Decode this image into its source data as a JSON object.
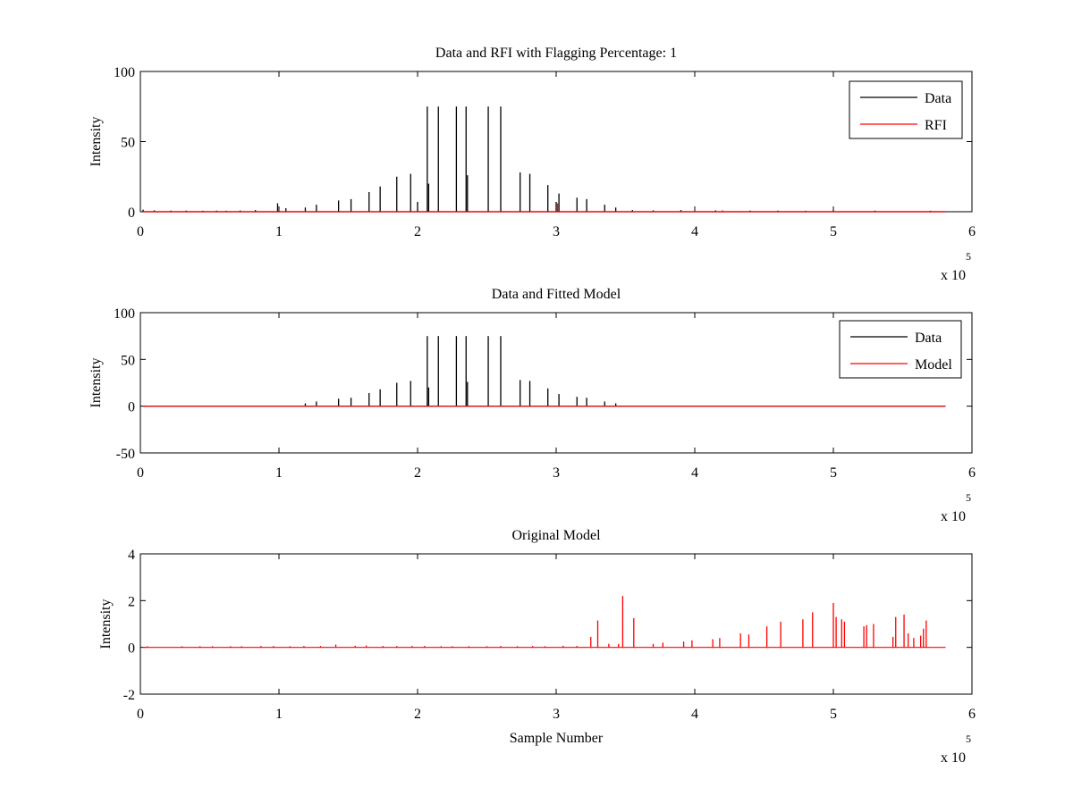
{
  "figure": {
    "x_exponent_base": "x 10",
    "x_exponent_power": "5"
  },
  "chart_data": [
    {
      "type": "line",
      "title": "Data and RFI with Flagging Percentage: 1",
      "xlabel": "",
      "ylabel": "Intensity",
      "xlim": [
        0,
        6
      ],
      "ylim": [
        0,
        100
      ],
      "x_scale": "x 10^5",
      "xticks": [
        "0",
        "1",
        "2",
        "3",
        "4",
        "5",
        "6"
      ],
      "yticks": [
        "0",
        "50",
        "100"
      ],
      "legend": {
        "position": "top-right",
        "entries": [
          {
            "name": "Data",
            "color": "#000000"
          },
          {
            "name": "RFI",
            "color": "#ff0000"
          }
        ]
      },
      "series": [
        {
          "name": "Data",
          "color": "#000000",
          "baseline": 0,
          "spikes": [
            [
              0.02,
              1.5
            ],
            [
              0.1,
              1
            ],
            [
              0.22,
              0.8
            ],
            [
              0.33,
              0.8
            ],
            [
              0.45,
              0.7
            ],
            [
              0.55,
              0.8
            ],
            [
              0.62,
              0.7
            ],
            [
              0.72,
              0.9
            ],
            [
              0.83,
              1.2
            ],
            [
              0.99,
              6
            ],
            [
              1.05,
              2.5
            ],
            [
              1.19,
              3
            ],
            [
              1.27,
              5
            ],
            [
              1.43,
              8
            ],
            [
              1.52,
              9
            ],
            [
              1.65,
              14
            ],
            [
              1.73,
              18
            ],
            [
              1.85,
              25
            ],
            [
              1.95,
              27
            ],
            [
              2.0,
              7
            ],
            [
              2.07,
              75
            ],
            [
              2.08,
              20
            ],
            [
              2.15,
              75
            ],
            [
              2.28,
              75
            ],
            [
              2.35,
              75
            ],
            [
              2.36,
              26
            ],
            [
              2.51,
              75
            ],
            [
              2.6,
              75
            ],
            [
              2.74,
              28
            ],
            [
              2.81,
              27
            ],
            [
              2.94,
              19
            ],
            [
              3.0,
              7
            ],
            [
              3.02,
              13
            ],
            [
              3.15,
              10
            ],
            [
              3.22,
              9
            ],
            [
              3.35,
              5
            ],
            [
              3.43,
              3
            ],
            [
              3.55,
              1.2
            ],
            [
              3.7,
              1
            ],
            [
              3.9,
              1.2
            ],
            [
              4.15,
              1
            ],
            [
              4.4,
              0.8
            ],
            [
              4.6,
              0.8
            ],
            [
              4.8,
              0.7
            ],
            [
              5.0,
              1
            ],
            [
              5.3,
              0.8
            ],
            [
              5.7,
              0.7
            ]
          ]
        },
        {
          "name": "RFI",
          "color": "#ff0000",
          "baseline": 0,
          "spikes": [
            [
              3.01,
              6
            ],
            [
              4.2,
              1
            ]
          ]
        }
      ]
    },
    {
      "type": "line",
      "title": "Data and Fitted Model",
      "xlabel": "",
      "ylabel": "Intensity",
      "xlim": [
        0,
        6
      ],
      "ylim": [
        -50,
        100
      ],
      "x_scale": "x 10^5",
      "xticks": [
        "0",
        "1",
        "2",
        "3",
        "4",
        "5",
        "6"
      ],
      "yticks": [
        "-50",
        "0",
        "50",
        "100"
      ],
      "legend": {
        "position": "top-right",
        "entries": [
          {
            "name": "Data",
            "color": "#000000"
          },
          {
            "name": "Model",
            "color": "#ff0000"
          }
        ]
      },
      "series": [
        {
          "name": "Data",
          "color": "#000000",
          "baseline": 0,
          "spikes": [
            [
              1.19,
              3
            ],
            [
              1.27,
              5
            ],
            [
              1.43,
              8
            ],
            [
              1.52,
              9
            ],
            [
              1.65,
              14
            ],
            [
              1.73,
              18
            ],
            [
              1.85,
              25
            ],
            [
              1.95,
              27
            ],
            [
              2.07,
              75
            ],
            [
              2.08,
              20
            ],
            [
              2.15,
              75
            ],
            [
              2.28,
              75
            ],
            [
              2.35,
              75
            ],
            [
              2.36,
              26
            ],
            [
              2.51,
              75
            ],
            [
              2.6,
              75
            ],
            [
              2.74,
              28
            ],
            [
              2.81,
              27
            ],
            [
              2.94,
              19
            ],
            [
              3.02,
              13
            ],
            [
              3.15,
              10
            ],
            [
              3.22,
              9
            ],
            [
              3.35,
              5
            ],
            [
              3.43,
              3
            ]
          ]
        },
        {
          "name": "Model",
          "color": "#ff0000",
          "baseline": 0,
          "spikes": []
        }
      ]
    },
    {
      "type": "line",
      "title": "Original Model",
      "xlabel": "Sample Number",
      "ylabel": "Intensity",
      "xlim": [
        0,
        6
      ],
      "ylim": [
        -2,
        4
      ],
      "x_scale": "x 10^5",
      "xticks": [
        "0",
        "1",
        "2",
        "3",
        "4",
        "5",
        "6"
      ],
      "yticks": [
        "-2",
        "0",
        "2",
        "4"
      ],
      "legend": null,
      "series": [
        {
          "name": "",
          "color": "#ff0000",
          "baseline": 0,
          "spikes": [
            [
              0.05,
              0.05
            ],
            [
              0.3,
              0.05
            ],
            [
              0.43,
              0.05
            ],
            [
              0.52,
              0.05
            ],
            [
              0.65,
              0.05
            ],
            [
              0.73,
              0.05
            ],
            [
              0.87,
              0.06
            ],
            [
              0.96,
              0.06
            ],
            [
              1.08,
              0.05
            ],
            [
              1.18,
              0.06
            ],
            [
              1.3,
              0.06
            ],
            [
              1.41,
              0.12
            ],
            [
              1.55,
              0.07
            ],
            [
              1.63,
              0.08
            ],
            [
              1.75,
              0.06
            ],
            [
              1.85,
              0.06
            ],
            [
              1.96,
              0.06
            ],
            [
              2.05,
              0.06
            ],
            [
              2.17,
              0.05
            ],
            [
              2.25,
              0.05
            ],
            [
              2.37,
              0.05
            ],
            [
              2.5,
              0.05
            ],
            [
              2.6,
              0.06
            ],
            [
              2.72,
              0.05
            ],
            [
              2.83,
              0.06
            ],
            [
              2.92,
              0.05
            ],
            [
              3.05,
              0.07
            ],
            [
              3.15,
              0.06
            ],
            [
              3.25,
              0.45
            ],
            [
              3.3,
              1.15
            ],
            [
              3.38,
              0.15
            ],
            [
              3.45,
              0.15
            ],
            [
              3.48,
              2.2
            ],
            [
              3.56,
              1.25
            ],
            [
              3.7,
              0.15
            ],
            [
              3.77,
              0.2
            ],
            [
              3.92,
              0.25
            ],
            [
              3.98,
              0.3
            ],
            [
              4.13,
              0.35
            ],
            [
              4.18,
              0.4
            ],
            [
              4.33,
              0.6
            ],
            [
              4.39,
              0.55
            ],
            [
              4.52,
              0.9
            ],
            [
              4.62,
              1.1
            ],
            [
              4.78,
              1.2
            ],
            [
              4.85,
              1.5
            ],
            [
              5.0,
              1.9
            ],
            [
              5.02,
              1.3
            ],
            [
              5.06,
              1.2
            ],
            [
              5.08,
              1.1
            ],
            [
              5.22,
              0.9
            ],
            [
              5.24,
              0.95
            ],
            [
              5.29,
              1.0
            ],
            [
              5.43,
              0.45
            ],
            [
              5.45,
              1.3
            ],
            [
              5.51,
              1.4
            ],
            [
              5.54,
              0.6
            ],
            [
              5.58,
              0.4
            ],
            [
              5.63,
              0.5
            ],
            [
              5.65,
              0.8
            ],
            [
              5.67,
              1.15
            ]
          ]
        }
      ]
    }
  ]
}
